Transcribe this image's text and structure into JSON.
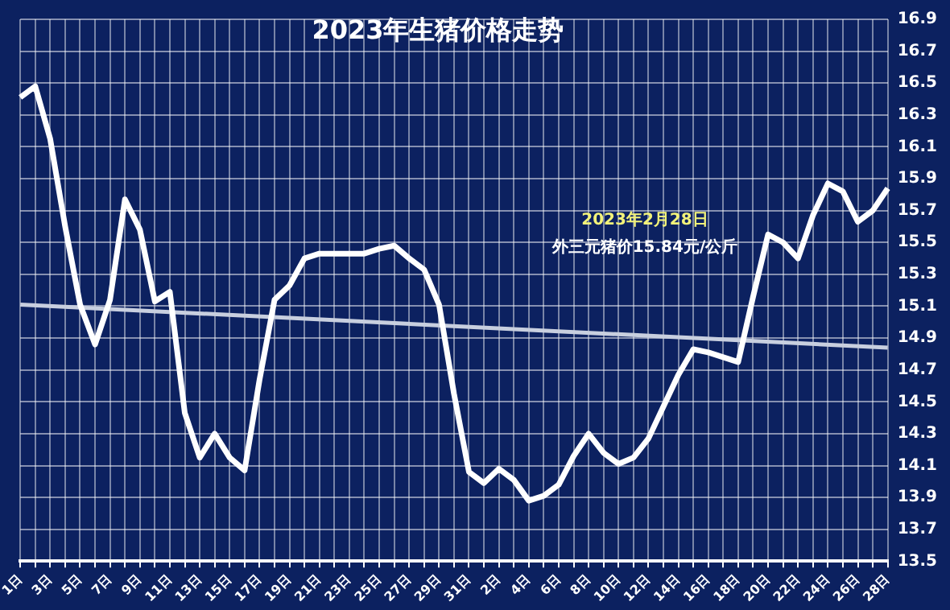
{
  "chart_data": {
    "type": "line",
    "title": "2023年生猪价格走势",
    "categories": [
      "1日",
      null,
      "3日",
      null,
      "5日",
      null,
      "7日",
      null,
      "9日",
      null,
      "11日",
      null,
      "13日",
      null,
      "15日",
      null,
      "17日",
      null,
      "19日",
      null,
      "21日",
      null,
      "23日",
      null,
      "25日",
      null,
      "27日",
      null,
      "29日",
      null,
      "31日",
      null,
      "2日",
      null,
      "4日",
      null,
      "6日",
      null,
      "8日",
      null,
      "10日",
      null,
      "12日",
      null,
      "14日",
      null,
      "16日",
      null,
      "18日",
      null,
      "20日",
      null,
      "22日",
      null,
      "24日",
      null,
      "26日",
      null,
      "28日"
    ],
    "series": [
      {
        "color": "#ffffff",
        "values": [
          16.41,
          16.48,
          16.15,
          15.6,
          15.11,
          14.86,
          15.14,
          15.77,
          15.58,
          15.13,
          15.19,
          14.43,
          14.15,
          14.3,
          14.15,
          14.07,
          14.64,
          15.14,
          15.23,
          15.4,
          15.43,
          15.43,
          15.43,
          15.43,
          15.46,
          15.48,
          15.4,
          15.33,
          15.11,
          14.55,
          14.06,
          13.99,
          14.08,
          14.01,
          13.88,
          13.91,
          13.98,
          14.16,
          14.3,
          14.18,
          14.11,
          14.15,
          14.27,
          14.47,
          14.67,
          14.83,
          14.81,
          14.78,
          14.75,
          15.16,
          15.55,
          15.5,
          15.4,
          15.67,
          15.87,
          15.82,
          15.63,
          15.7,
          15.84
        ]
      },
      {
        "color": "#c8cfdf",
        "x": [
          "1日",
          "28日"
        ],
        "values": [
          15.11,
          14.84
        ]
      }
    ],
    "ylim": [
      13.5,
      16.9
    ],
    "yticks": [
      13.5,
      13.7,
      13.9,
      14.1,
      14.3,
      14.5,
      14.7,
      14.9,
      15.1,
      15.3,
      15.5,
      15.7,
      15.9,
      16.1,
      16.3,
      16.5,
      16.7,
      16.9
    ],
    "grid": true,
    "legend": false,
    "marker": "none",
    "line_style": "solid",
    "annotations": [
      "2023年2月28日",
      "外三元猪价15.84元/公斤"
    ]
  }
}
